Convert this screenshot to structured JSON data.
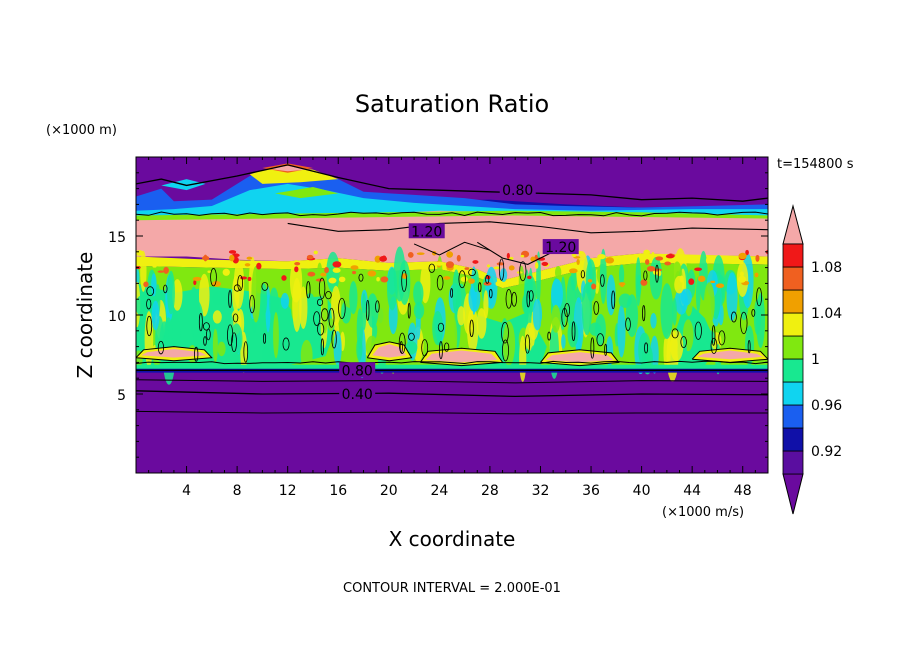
{
  "chart_data": {
    "type": "heatmap",
    "title": "Saturation Ratio",
    "xlabel": "X coordinate",
    "ylabel": "Z coordinate",
    "x_unit": "(×1000 m/s)",
    "y_unit": "(×1000 m)",
    "time_label": "t=154800 s",
    "footer": "CONTOUR INTERVAL = 2.000E-01",
    "xlim": [
      0,
      50
    ],
    "ylim": [
      0,
      20
    ],
    "x_ticks": [
      4,
      8,
      12,
      16,
      20,
      24,
      28,
      32,
      36,
      40,
      44,
      48
    ],
    "x_tick_labels": [
      "4",
      "8",
      "12",
      "16",
      "20",
      "24",
      "28",
      "32",
      "36",
      "40",
      "44",
      "48"
    ],
    "y_ticks": [
      5,
      10,
      15
    ],
    "y_tick_labels": [
      "5",
      "10",
      "15"
    ],
    "contour_labels": [
      {
        "text": "0.80",
        "x": 30.2,
        "y": 17.9
      },
      {
        "text": "1.20",
        "x": 23.0,
        "y": 15.3
      },
      {
        "text": "1.20",
        "x": 33.6,
        "y": 14.3
      },
      {
        "text": "0.80",
        "x": 17.5,
        "y": 6.5
      },
      {
        "text": "0.40",
        "x": 17.5,
        "y": 5.0
      }
    ],
    "colorbar": {
      "levels": [
        0.9,
        0.92,
        0.94,
        0.96,
        0.98,
        1.0,
        1.02,
        1.04,
        1.06,
        1.08,
        1.1
      ],
      "labels": [
        "0.92",
        "0.96",
        "1",
        "1.04",
        "1.08"
      ],
      "label_values": [
        0.92,
        0.96,
        1.0,
        1.04,
        1.08
      ],
      "below_color": "#6a0a9e",
      "above_color": "#f4a8a8",
      "colors": [
        "#5a0ea0",
        "#1010a8",
        "#1a5ff0",
        "#10d4f0",
        "#18e890",
        "#80e810",
        "#f0f010",
        "#f0a000",
        "#f06020",
        "#f01818"
      ]
    },
    "regions": [
      {
        "name": "lower-purple",
        "level": "below",
        "y_range": [
          0,
          6.6
        ]
      },
      {
        "name": "mid-cloud-green",
        "level": "0.98-1.02",
        "y_range": [
          6.6,
          13.5
        ]
      },
      {
        "name": "supersaturated-pink",
        "level": "above",
        "y_range": [
          13.5,
          16.5
        ]
      },
      {
        "name": "upper-blue-band",
        "level": "0.92-0.98",
        "y_range": [
          16.3,
          18.5
        ]
      },
      {
        "name": "upper-purple",
        "level": "below",
        "y_range": [
          18.5,
          20
        ]
      }
    ],
    "grid": false
  }
}
